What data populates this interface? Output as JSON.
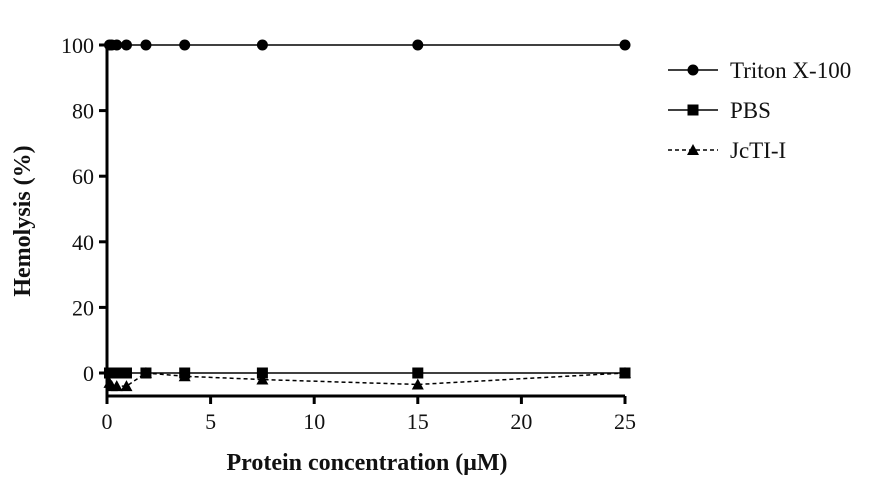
{
  "chart_data": {
    "type": "line",
    "title": "",
    "xlabel": "Protein concentration (μM)",
    "ylabel": "Hemolysis (%)",
    "xlim": [
      0,
      25
    ],
    "ylim": [
      -7,
      100
    ],
    "xticks": [
      "0",
      "5",
      "10",
      "15",
      "20",
      "25"
    ],
    "yticks": [
      "0",
      "20",
      "40",
      "60",
      "80",
      "100"
    ],
    "grid": false,
    "legend_position": "right",
    "series": [
      {
        "name": "Triton X-100",
        "marker": "circle",
        "line": "solid",
        "x": [
          0.12,
          0.23,
          0.47,
          0.94,
          1.88,
          3.75,
          7.5,
          15,
          25
        ],
        "y": [
          100,
          100,
          100,
          100,
          100,
          100,
          100,
          100,
          100
        ]
      },
      {
        "name": "PBS",
        "marker": "square",
        "line": "solid",
        "x": [
          0.12,
          0.23,
          0.47,
          0.94,
          1.88,
          3.75,
          7.5,
          15,
          25
        ],
        "y": [
          0,
          0,
          0,
          0,
          0,
          0,
          0,
          0,
          0
        ]
      },
      {
        "name": "JcTI-I",
        "marker": "triangle",
        "line": "dashed",
        "x": [
          0.12,
          0.23,
          0.47,
          0.94,
          1.88,
          3.75,
          7.5,
          15,
          25
        ],
        "y": [
          -3,
          -4,
          -4,
          -4,
          0,
          -1,
          -2,
          -3.5,
          0
        ]
      }
    ]
  }
}
